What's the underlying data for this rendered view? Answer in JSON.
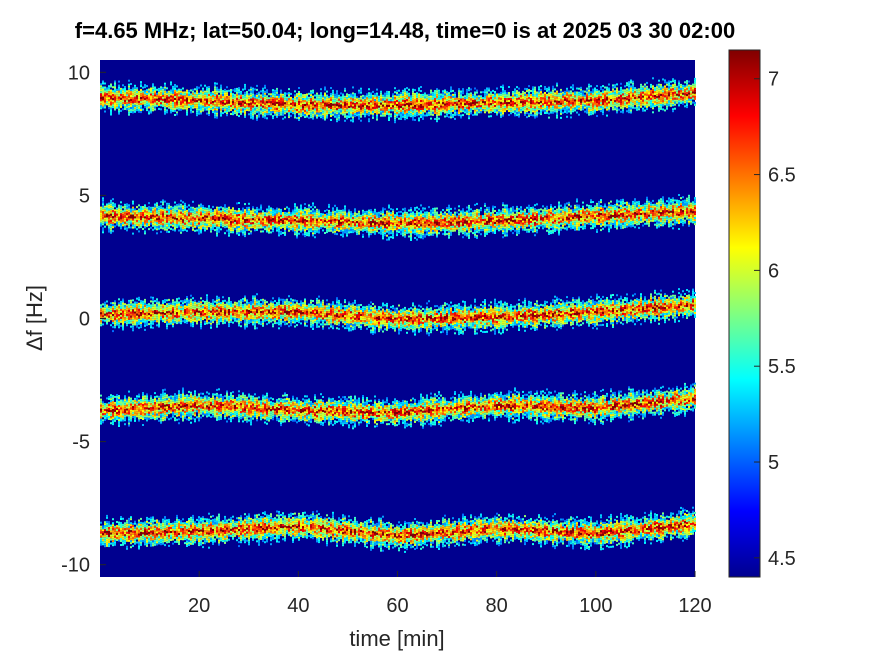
{
  "chart_data": {
    "type": "heatmap",
    "title": "f=4.65 MHz;  lat=50.04; long=14.48, time=0 is at 2025 03 30 02:00",
    "xlabel": "time [min]",
    "ylabel": "Δf [Hz]",
    "xlim": [
      0,
      120
    ],
    "ylim": [
      -10.5,
      10.5
    ],
    "x_ticks": [
      20,
      40,
      60,
      80,
      100,
      120
    ],
    "x_tick_labels": [
      "20",
      "40",
      "60",
      "80",
      "100",
      "120"
    ],
    "y_ticks": [
      10,
      5,
      0,
      -5,
      -10
    ],
    "y_tick_labels": [
      "10",
      "5",
      "0",
      "-5",
      "-10"
    ],
    "colorbar": {
      "clim": [
        4.4,
        7.15
      ],
      "ticks": [
        7,
        6.5,
        6,
        5.5,
        5,
        4.5
      ],
      "tick_labels": [
        "7",
        "6.5",
        "6",
        "5.5",
        "5",
        "4.5"
      ],
      "colormap": "jet"
    },
    "background_level": 4.4,
    "bands": [
      {
        "center_hz": 9.0,
        "points": [
          [
            0,
            9.0
          ],
          [
            20,
            8.9
          ],
          [
            40,
            8.7
          ],
          [
            60,
            8.7
          ],
          [
            80,
            8.8
          ],
          [
            100,
            8.9
          ],
          [
            120,
            9.2
          ]
        ]
      },
      {
        "center_hz": 4.2,
        "points": [
          [
            0,
            4.2
          ],
          [
            20,
            4.1
          ],
          [
            40,
            4.0
          ],
          [
            60,
            3.9
          ],
          [
            80,
            4.0
          ],
          [
            100,
            4.2
          ],
          [
            120,
            4.4
          ]
        ]
      },
      {
        "center_hz": 0.2,
        "points": [
          [
            0,
            0.2
          ],
          [
            20,
            0.3
          ],
          [
            40,
            0.3
          ],
          [
            60,
            0.0
          ],
          [
            80,
            0.1
          ],
          [
            100,
            0.3
          ],
          [
            120,
            0.6
          ]
        ]
      },
      {
        "center_hz": -3.7,
        "points": [
          [
            0,
            -3.7
          ],
          [
            20,
            -3.5
          ],
          [
            40,
            -3.7
          ],
          [
            60,
            -3.8
          ],
          [
            80,
            -3.5
          ],
          [
            100,
            -3.6
          ],
          [
            120,
            -3.2
          ]
        ]
      },
      {
        "center_hz": -8.7,
        "points": [
          [
            0,
            -8.7
          ],
          [
            20,
            -8.6
          ],
          [
            40,
            -8.4
          ],
          [
            60,
            -8.8
          ],
          [
            80,
            -8.5
          ],
          [
            100,
            -8.7
          ],
          [
            120,
            -8.3
          ]
        ]
      }
    ]
  }
}
